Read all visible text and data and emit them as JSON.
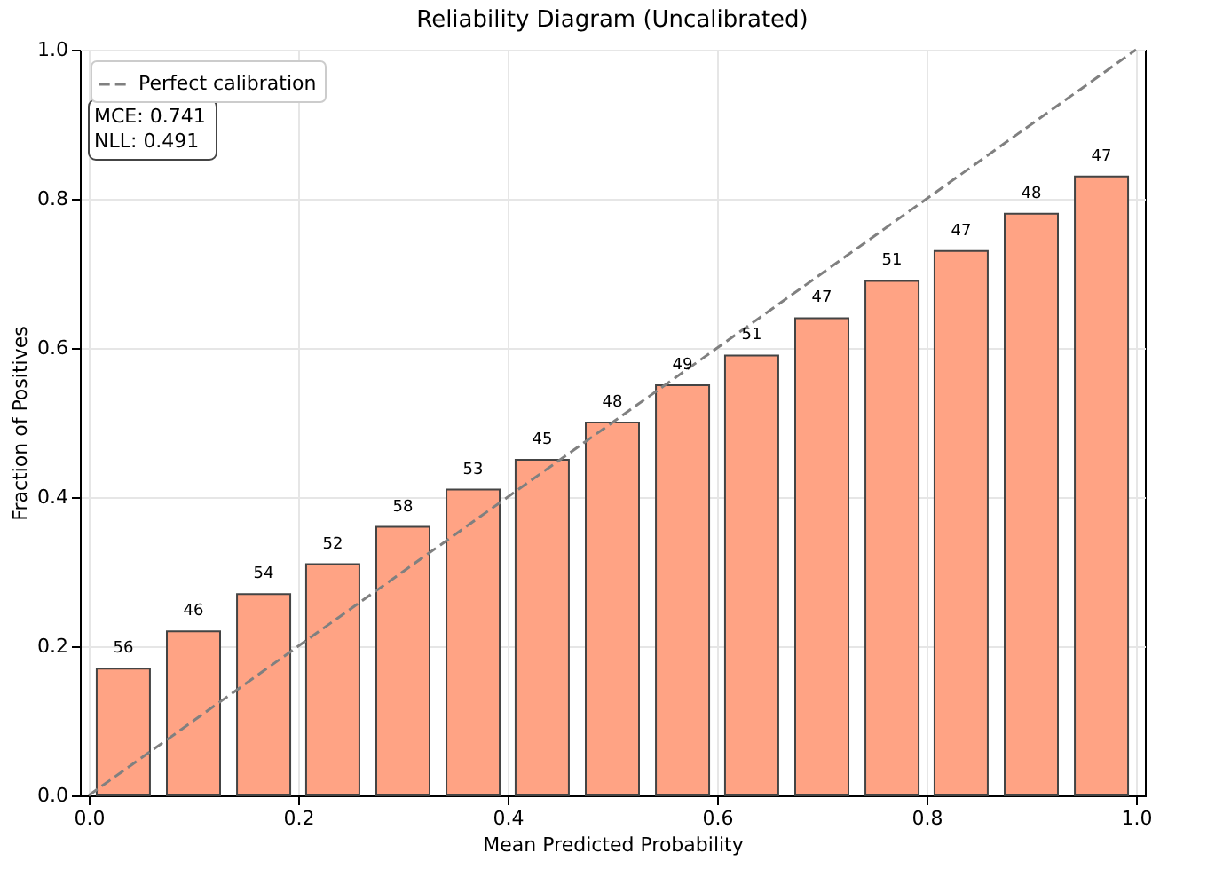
{
  "chart_data": {
    "type": "bar",
    "title": "Reliability Diagram (Uncalibrated)",
    "xlabel": "Mean Predicted Probability",
    "ylabel": "Fraction of Positives",
    "x": [
      0.033,
      0.1,
      0.167,
      0.233,
      0.3,
      0.367,
      0.433,
      0.5,
      0.567,
      0.633,
      0.7,
      0.767,
      0.833,
      0.9,
      0.967
    ],
    "series": [
      {
        "color": "#ffa384",
        "values": [
          0.17,
          0.22,
          0.27,
          0.31,
          0.36,
          0.41,
          0.45,
          0.5,
          0.55,
          0.59,
          0.64,
          0.69,
          0.73,
          0.78,
          0.83
        ]
      },
      {
        "type": "line",
        "name": "Perfect calibration",
        "color": "#808080",
        "line_style": "dashed",
        "x": [
          0,
          1
        ],
        "values": [
          0,
          1
        ]
      }
    ],
    "xlim": [
      0,
      1
    ],
    "ylim": [
      0,
      1
    ],
    "xticks": [
      {
        "value": 0,
        "label": "0.0"
      },
      {
        "value": 0.2,
        "label": "0.2"
      },
      {
        "value": 0.4,
        "label": "0.4"
      },
      {
        "value": 0.6,
        "label": "0.6"
      },
      {
        "value": 0.8,
        "label": "0.8"
      },
      {
        "value": 1,
        "label": "1.0"
      }
    ],
    "yticks": [
      {
        "value": 0,
        "label": "0.0"
      },
      {
        "value": 0.2,
        "label": "0.2"
      },
      {
        "value": 0.4,
        "label": "0.4"
      },
      {
        "value": 0.6,
        "label": "0.6"
      },
      {
        "value": 0.8,
        "label": "0.8"
      },
      {
        "value": 1,
        "label": "1.0"
      }
    ],
    "grid": true,
    "legend": "top left",
    "annotations": [
      "MCE: 0.741",
      "NLL: 0.491",
      {
        "text": "56",
        "x": 0.033,
        "y": 0.17
      },
      {
        "text": "46",
        "x": 0.1,
        "y": 0.22
      },
      {
        "text": "54",
        "x": 0.167,
        "y": 0.27
      },
      {
        "text": "52",
        "x": 0.233,
        "y": 0.31
      },
      {
        "text": "58",
        "x": 0.3,
        "y": 0.36
      },
      {
        "text": "53",
        "x": 0.367,
        "y": 0.41
      },
      {
        "text": "45",
        "x": 0.433,
        "y": 0.45
      },
      {
        "text": "48",
        "x": 0.5,
        "y": 0.5
      },
      {
        "text": "49",
        "x": 0.567,
        "y": 0.55
      },
      {
        "text": "51",
        "x": 0.633,
        "y": 0.59
      },
      {
        "text": "47",
        "x": 0.7,
        "y": 0.64
      },
      {
        "text": "51",
        "x": 0.767,
        "y": 0.69
      },
      {
        "text": "47",
        "x": 0.833,
        "y": 0.73
      },
      {
        "text": "48",
        "x": 0.9,
        "y": 0.78
      },
      {
        "text": "47",
        "x": 0.967,
        "y": 0.83
      }
    ]
  }
}
